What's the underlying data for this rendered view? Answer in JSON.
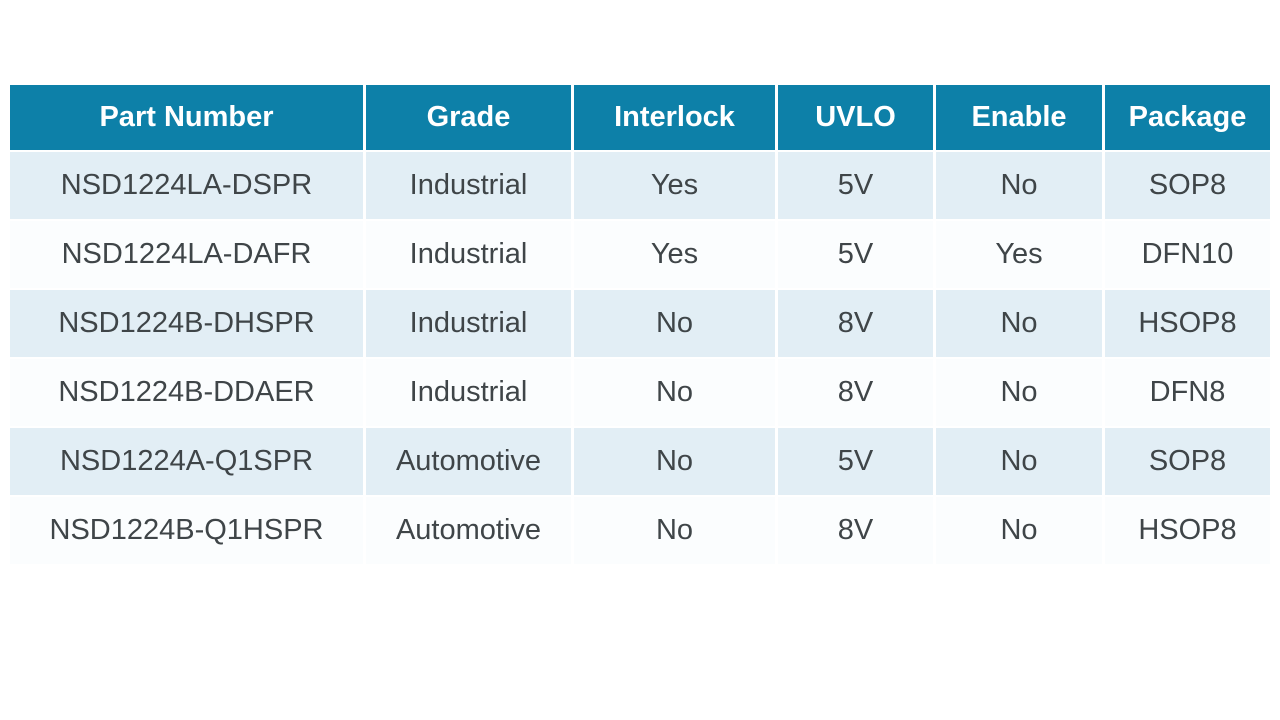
{
  "colors": {
    "header_bg": "#0d80a8",
    "header_text": "#ffffff",
    "row_alt_bg": "#e2eef5",
    "row_bg": "#fbfdfe",
    "body_text": "#3f4548",
    "separator": "#ffffff"
  },
  "table": {
    "columns": [
      {
        "key": "part_number",
        "label": "Part Number"
      },
      {
        "key": "grade",
        "label": "Grade"
      },
      {
        "key": "interlock",
        "label": "Interlock"
      },
      {
        "key": "uvlo",
        "label": "UVLO"
      },
      {
        "key": "enable",
        "label": "Enable"
      },
      {
        "key": "package",
        "label": "Package"
      }
    ],
    "rows": [
      [
        "NSD1224LA-DSPR",
        "Industrial",
        "Yes",
        "5V",
        "No",
        "SOP8"
      ],
      [
        "NSD1224LA-DAFR",
        "Industrial",
        "Yes",
        "5V",
        "Yes",
        "DFN10"
      ],
      [
        "NSD1224B-DHSPR",
        "Industrial",
        "No",
        "8V",
        "No",
        "HSOP8"
      ],
      [
        "NSD1224B-DDAER",
        "Industrial",
        "No",
        "8V",
        "No",
        "DFN8"
      ],
      [
        "NSD1224A-Q1SPR",
        "Automotive",
        "No",
        "5V",
        "No",
        "SOP8"
      ],
      [
        "NSD1224B-Q1HSPR",
        "Automotive",
        "No",
        "8V",
        "No",
        "HSOP8"
      ]
    ]
  }
}
